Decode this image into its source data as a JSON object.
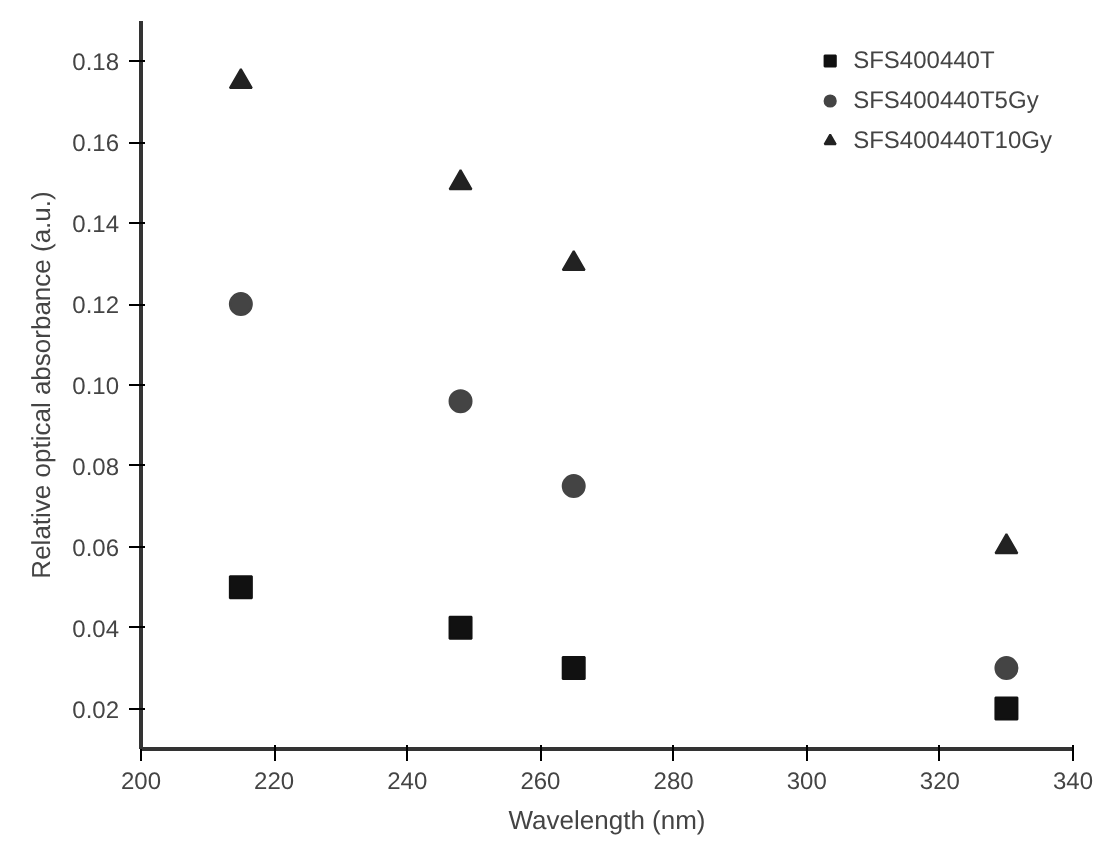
{
  "chart_data": {
    "type": "scatter",
    "xlabel": "Wavelength (nm)",
    "ylabel": "Relative optical absorbance (a.u.)",
    "x": [
      215,
      248,
      265,
      330
    ],
    "series": [
      {
        "name": "SFS400440T",
        "color": "#111111",
        "marker": "square",
        "values": [
          0.05,
          0.04,
          0.03,
          0.02
        ]
      },
      {
        "name": "SFS400440T5Gy",
        "color": "#444444",
        "marker": "circle",
        "values": [
          0.12,
          0.096,
          0.075,
          0.03
        ]
      },
      {
        "name": "SFS400440T10Gy",
        "color": "#222222",
        "marker": "triangle",
        "values": [
          0.175,
          0.15,
          0.13,
          0.06
        ]
      }
    ],
    "xlim": [
      200,
      340
    ],
    "xticks": [
      200,
      220,
      240,
      260,
      280,
      300,
      320,
      340
    ],
    "ylim": [
      0.01,
      0.19
    ],
    "yticks": [
      0.02,
      0.04,
      0.06,
      0.08,
      {
        "value": 0.1,
        "label": "0.10"
      },
      0.12,
      0.14,
      0.16,
      0.18
    ],
    "grid": false,
    "legend": "top right"
  }
}
